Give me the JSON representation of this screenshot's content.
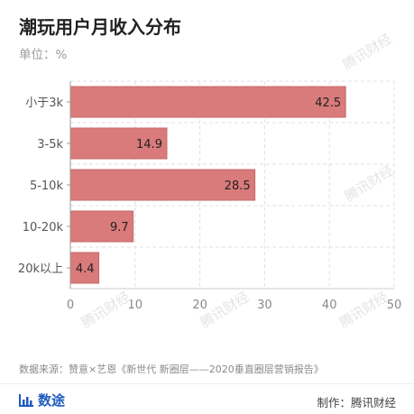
{
  "header": {
    "title": "潮玩用户月收入分布",
    "unit": "单位：%"
  },
  "watermark": "腾讯财经",
  "footer": {
    "source": "数据来源：赞意×艺恩《新世代 新圈层——2020垂直圈层营销报告》",
    "brand": "数途",
    "credit": "制作：腾讯财经"
  },
  "colors": {
    "bar": "#d97a7b",
    "bar_stroke": "#c76a6b",
    "grid": "#e0e0e0",
    "axis_text": "#555555",
    "brand": "#1f5bbf"
  },
  "chart_data": {
    "type": "bar",
    "orientation": "horizontal",
    "categories": [
      "小于3k",
      "3-5k",
      "5-10k",
      "10-20k",
      "20k以上"
    ],
    "values": [
      42.5,
      14.9,
      28.5,
      9.7,
      4.4
    ],
    "xlim": [
      0,
      50
    ],
    "xticks": [
      0,
      10,
      20,
      30,
      40,
      50
    ],
    "grid": true,
    "title": "潮玩用户月收入分布",
    "xlabel": "",
    "ylabel": ""
  }
}
